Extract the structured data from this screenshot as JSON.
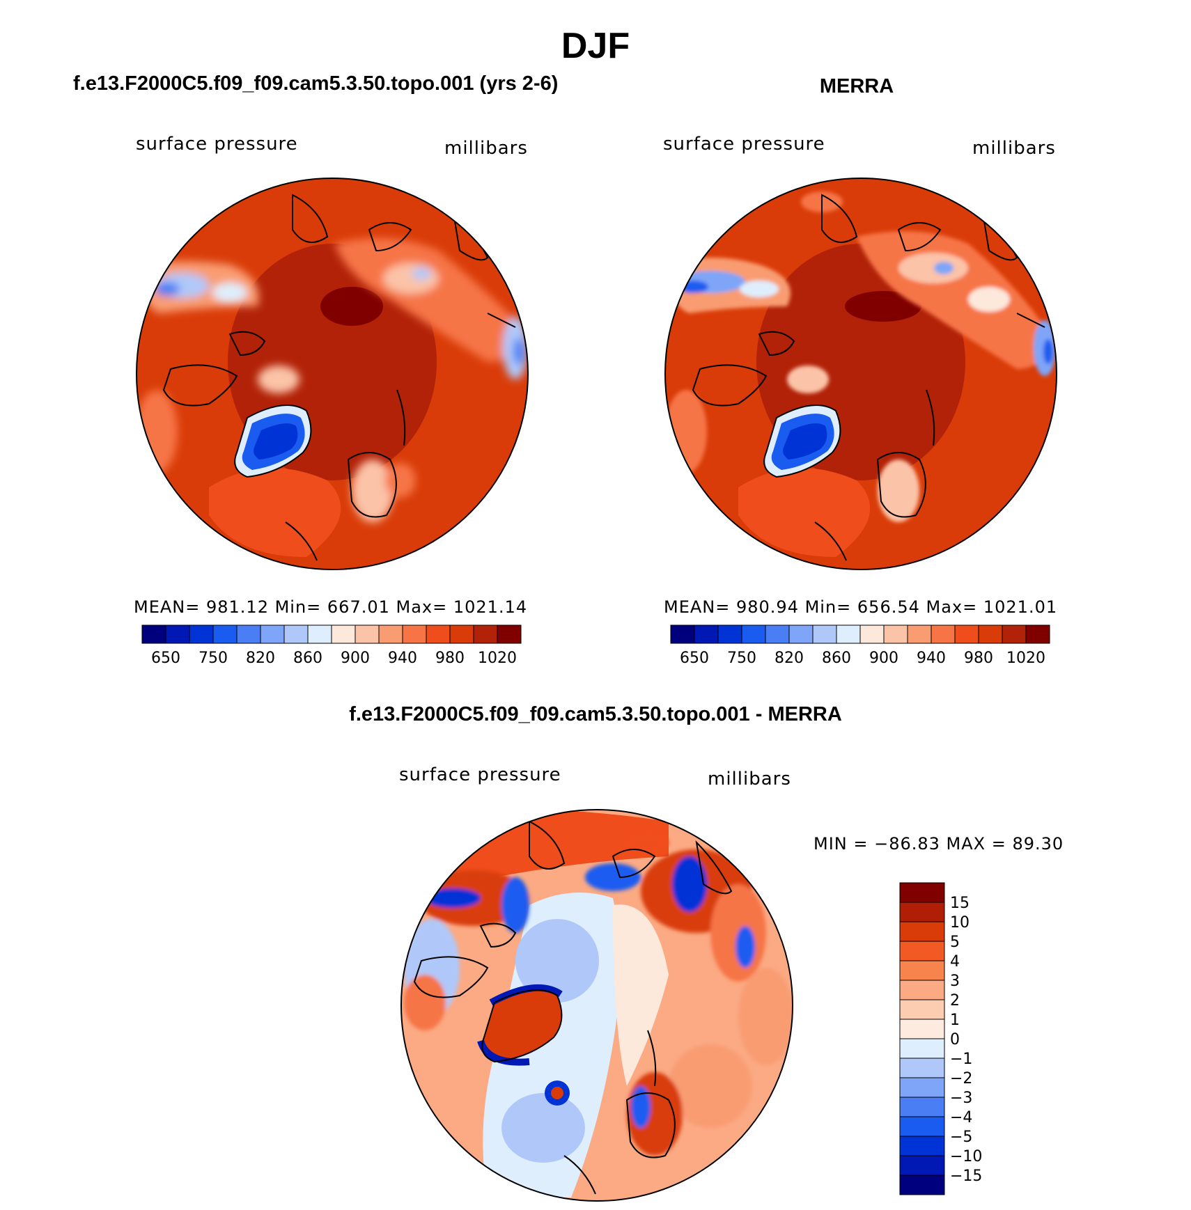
{
  "figure": {
    "season": "DJF",
    "model_title": "f.e13.F2000C5.f09_f09.cam5.3.50.topo.001 (yrs 2-6)",
    "obs_title": "MERRA",
    "diff_title": "f.e13.F2000C5.f09_f09.cam5.3.50.topo.001 - MERRA"
  },
  "panels": {
    "model": {
      "variable": "surface pressure",
      "units": "millibars",
      "stats": "MEAN= 981.12   Min= 667.01   Max= 1021.14"
    },
    "obs": {
      "variable": "surface pressure",
      "units": "millibars",
      "stats": "MEAN= 980.94   Min= 656.54   Max= 1021.01"
    },
    "diff": {
      "variable": "surface pressure",
      "units": "millibars",
      "stats": "MIN = −86.83 MAX =   89.30"
    }
  },
  "colorbars": {
    "abs": {
      "colors": [
        "#00007f",
        "#0019b4",
        "#0033d6",
        "#1a5cf0",
        "#4a7ef4",
        "#7ea5f7",
        "#b0c8f9",
        "#dfeefd",
        "#fde8dc",
        "#fbc3a8",
        "#f99c72",
        "#f67446",
        "#f04d1c",
        "#d93c08",
        "#b22208",
        "#800000"
      ],
      "tick_labels": [
        "650",
        "750",
        "820",
        "860",
        "900",
        "940",
        "980",
        "1020"
      ]
    },
    "diff": {
      "colors": [
        "#800000",
        "#b01e06",
        "#d93c08",
        "#f25a24",
        "#f7834d",
        "#fbaa84",
        "#fdcdb2",
        "#fdebdf",
        "#dfeefd",
        "#b0c8f9",
        "#7ea5f7",
        "#4a7ef4",
        "#1a5cf0",
        "#0033d6",
        "#0019b4",
        "#00007f"
      ],
      "tick_labels": [
        "15",
        "10",
        "5",
        "4",
        "3",
        "2",
        "1",
        "0",
        "−1",
        "−2",
        "−3",
        "−4",
        "−5",
        "−10",
        "−15"
      ]
    }
  }
}
